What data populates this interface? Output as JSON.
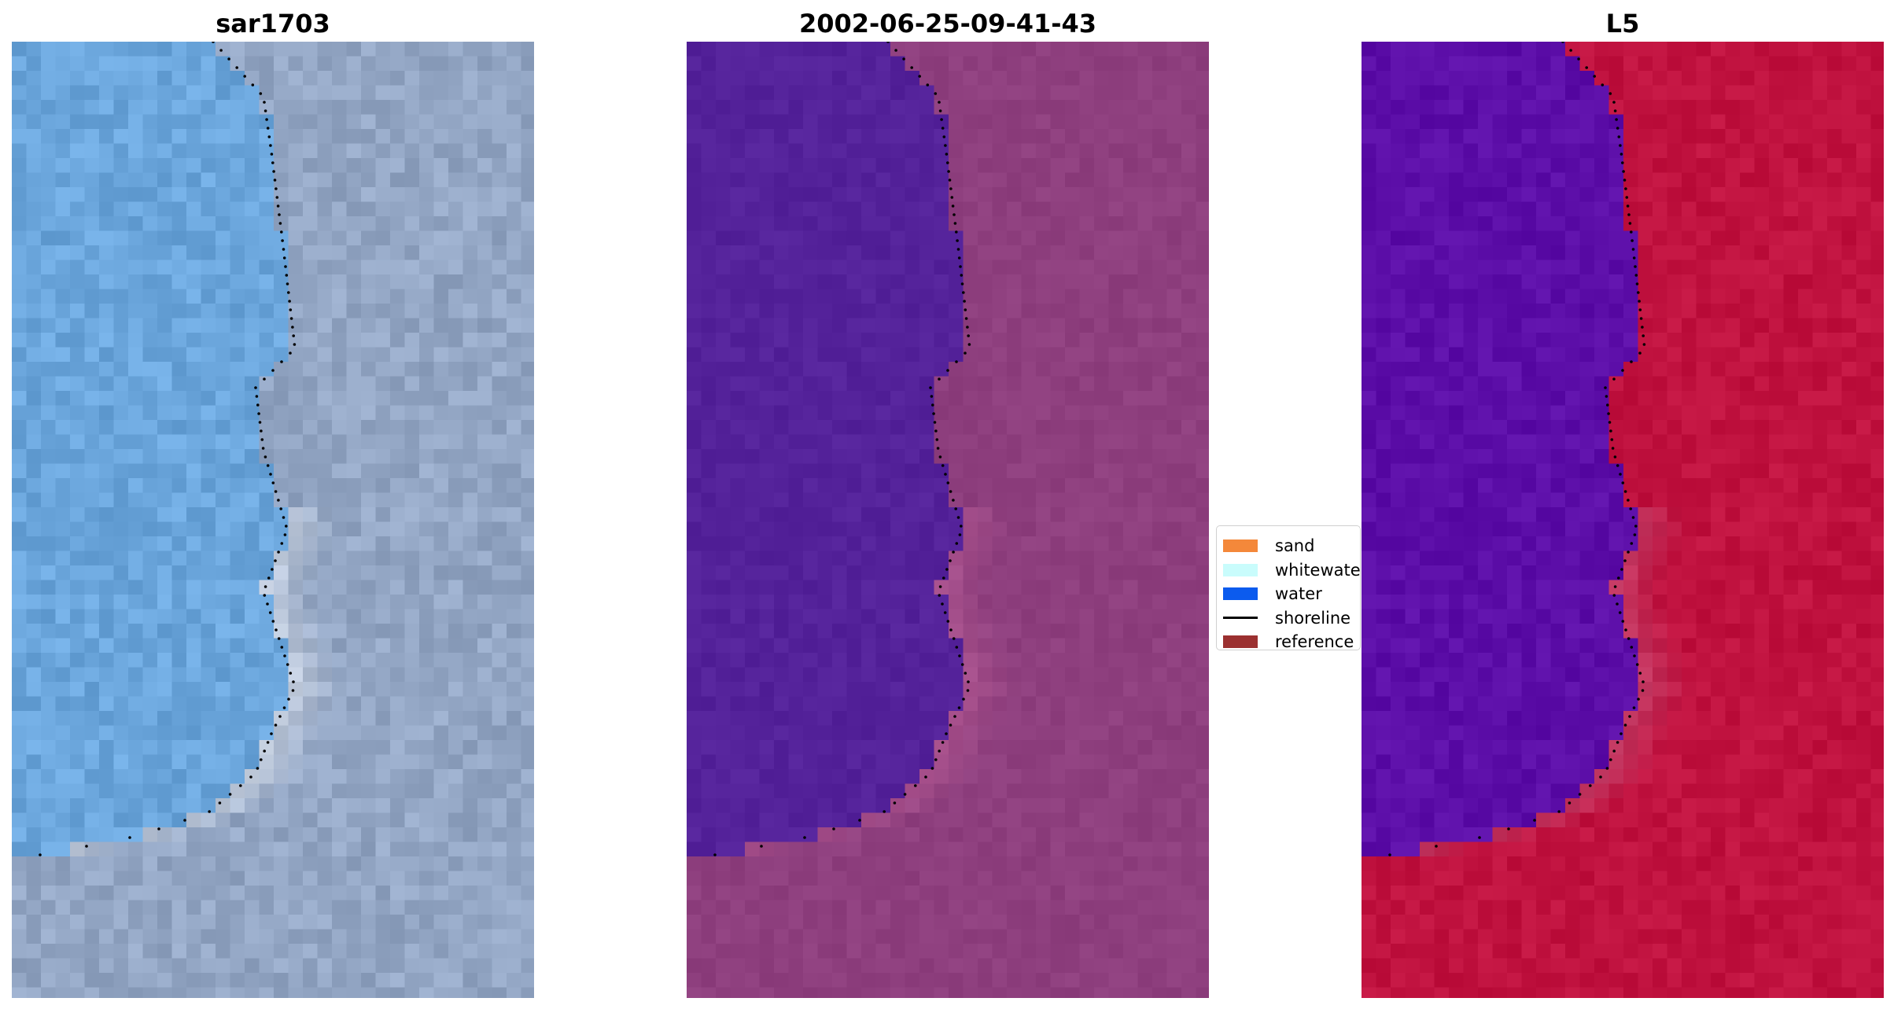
{
  "panels": [
    {
      "title": "sar1703",
      "style": "rgb"
    },
    {
      "title": "2002-06-25-09-41-43",
      "style": "classified"
    },
    {
      "title": "L5",
      "style": "index"
    }
  ],
  "legend": {
    "items": [
      {
        "label": "sand",
        "color": "#f4883a",
        "kind": "patch"
      },
      {
        "label": "whitewater",
        "color": "#c9fcfc",
        "kind": "patch"
      },
      {
        "label": "water",
        "color": "#0b5bee",
        "kind": "patch"
      },
      {
        "label": "shoreline",
        "color": "#000000",
        "kind": "line"
      },
      {
        "label": "reference shoreline",
        "color": "#9b3030",
        "kind": "patch"
      }
    ]
  },
  "colors": {
    "water_class": "#54229a",
    "land_class": "#8e3f7e",
    "index_water": "#5c0ea8",
    "index_land": "#c0123f",
    "rgb_water": "#6ba6dc",
    "rgb_land": "#93a6c4"
  }
}
